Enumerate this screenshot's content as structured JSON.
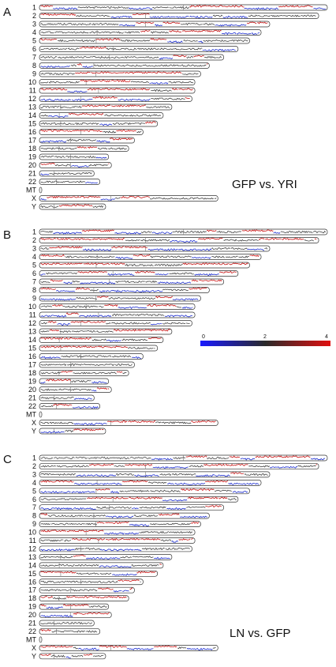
{
  "chromosomes": [
    "1",
    "2",
    "3",
    "4",
    "5",
    "6",
    "7",
    "8",
    "9",
    "10",
    "11",
    "12",
    "13",
    "14",
    "15",
    "16",
    "17",
    "18",
    "19",
    "20",
    "21",
    "22",
    "MT",
    "X",
    "Y"
  ],
  "relative_length": [
    1.0,
    0.97,
    0.8,
    0.77,
    0.73,
    0.69,
    0.64,
    0.59,
    0.56,
    0.54,
    0.54,
    0.53,
    0.46,
    0.43,
    0.41,
    0.36,
    0.33,
    0.31,
    0.24,
    0.25,
    0.19,
    0.21,
    0.006,
    0.62,
    0.23
  ],
  "centromere": [
    0.5,
    0.38,
    0.46,
    0.26,
    0.27,
    0.37,
    0.38,
    0.32,
    0.35,
    0.3,
    0.38,
    0.27,
    0.16,
    0.16,
    0.18,
    0.4,
    0.33,
    0.22,
    0.45,
    0.43,
    0.27,
    0.28,
    0,
    0.4,
    0.22
  ],
  "panels": [
    {
      "label": "A",
      "comparison": "GFP vs. YRI",
      "seed": 11
    },
    {
      "label": "B",
      "comparison": "",
      "seed": 37
    },
    {
      "label": "C",
      "comparison": "LN vs. GFP",
      "seed": 73
    }
  ],
  "scale_bar": {
    "ticks": [
      "0",
      "2",
      "4"
    ],
    "colors": [
      "#1a1aff",
      "#2a2a2a",
      "#e01010"
    ]
  },
  "colors": {
    "gain": "#c81414",
    "loss": "#1e2fd0",
    "neutral": "#444444",
    "outline": "#333333"
  }
}
